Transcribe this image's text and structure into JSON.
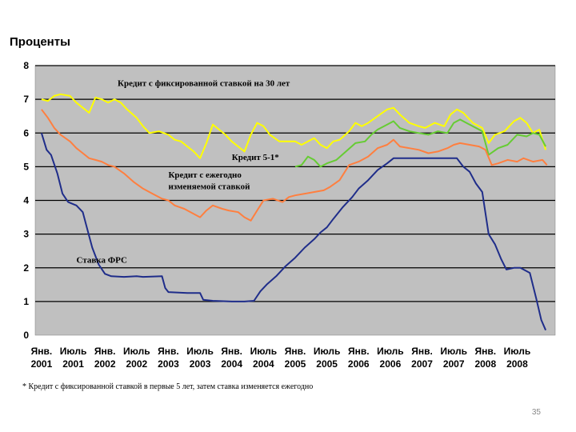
{
  "chart_data": {
    "type": "line",
    "ylabel": "Проценты",
    "ylim": [
      0,
      8
    ],
    "yticks": [
      0,
      1,
      2,
      3,
      4,
      5,
      6,
      7,
      8
    ],
    "xlim": [
      2000.9,
      2009.1
    ],
    "grid": true,
    "xticks": [
      {
        "x": 2001.0,
        "line1": "Янв.",
        "line2": "2001"
      },
      {
        "x": 2001.5,
        "line1": "Июль",
        "line2": "2001"
      },
      {
        "x": 2002.0,
        "line1": "Янв.",
        "line2": "2002"
      },
      {
        "x": 2002.5,
        "line1": "Июль",
        "line2": "2002"
      },
      {
        "x": 2003.0,
        "line1": "Янв.",
        "line2": "2003"
      },
      {
        "x": 2003.5,
        "line1": "Июль",
        "line2": "2003"
      },
      {
        "x": 2004.0,
        "line1": "Янв.",
        "line2": "2004"
      },
      {
        "x": 2004.5,
        "line1": "Июль",
        "line2": "2004"
      },
      {
        "x": 2005.0,
        "line1": "Янв.",
        "line2": "2005"
      },
      {
        "x": 2005.5,
        "line1": "Июль",
        "line2": "2005"
      },
      {
        "x": 2006.0,
        "line1": "Янв.",
        "line2": "2006"
      },
      {
        "x": 2006.5,
        "line1": "Июль",
        "line2": "2006"
      },
      {
        "x": 2007.0,
        "line1": "Янв.",
        "line2": "2007"
      },
      {
        "x": 2007.5,
        "line1": "Июль",
        "line2": "2007"
      },
      {
        "x": 2008.0,
        "line1": "Янв.",
        "line2": "2008"
      },
      {
        "x": 2008.5,
        "line1": "Июль",
        "line2": "2008"
      }
    ],
    "annotations": [
      {
        "id": "ann-30yr",
        "text": "Кредит с фиксированной ставкой на 30 лет",
        "x": 2002.2,
        "y": 7.4
      },
      {
        "id": "ann-51",
        "text": "Кредит 5-1*",
        "x": 2004.0,
        "y": 5.2
      },
      {
        "id": "ann-arm-1",
        "text": "Кредит с ежегодно",
        "x": 2003.0,
        "y": 4.68
      },
      {
        "id": "ann-arm-2",
        "text": "изменяемой ставкой",
        "x": 2003.0,
        "y": 4.33
      },
      {
        "id": "ann-fed",
        "text": "Ставка ФРС",
        "x": 2001.55,
        "y": 2.15
      }
    ],
    "series": [
      {
        "name": "Кредит с фиксированной ставкой на 30 лет",
        "color": "#ffff00",
        "points": [
          [
            2001.0,
            7.0
          ],
          [
            2001.1,
            6.95
          ],
          [
            2001.2,
            7.1
          ],
          [
            2001.3,
            7.15
          ],
          [
            2001.45,
            7.1
          ],
          [
            2001.55,
            6.9
          ],
          [
            2001.65,
            6.75
          ],
          [
            2001.75,
            6.6
          ],
          [
            2001.85,
            7.05
          ],
          [
            2001.95,
            7.0
          ],
          [
            2002.05,
            6.9
          ],
          [
            2002.15,
            7.0
          ],
          [
            2002.25,
            6.9
          ],
          [
            2002.35,
            6.7
          ],
          [
            2002.5,
            6.45
          ],
          [
            2002.6,
            6.2
          ],
          [
            2002.7,
            6.0
          ],
          [
            2002.85,
            6.05
          ],
          [
            2003.0,
            5.95
          ],
          [
            2003.1,
            5.8
          ],
          [
            2003.2,
            5.75
          ],
          [
            2003.3,
            5.6
          ],
          [
            2003.4,
            5.45
          ],
          [
            2003.5,
            5.25
          ],
          [
            2003.6,
            5.7
          ],
          [
            2003.7,
            6.25
          ],
          [
            2003.8,
            6.1
          ],
          [
            2003.9,
            5.95
          ],
          [
            2004.0,
            5.75
          ],
          [
            2004.1,
            5.6
          ],
          [
            2004.2,
            5.45
          ],
          [
            2004.3,
            5.95
          ],
          [
            2004.4,
            6.3
          ],
          [
            2004.5,
            6.2
          ],
          [
            2004.6,
            5.95
          ],
          [
            2004.75,
            5.75
          ],
          [
            2004.9,
            5.75
          ],
          [
            2005.0,
            5.75
          ],
          [
            2005.1,
            5.65
          ],
          [
            2005.2,
            5.75
          ],
          [
            2005.3,
            5.85
          ],
          [
            2005.4,
            5.65
          ],
          [
            2005.5,
            5.55
          ],
          [
            2005.6,
            5.75
          ],
          [
            2005.7,
            5.8
          ],
          [
            2005.85,
            6.05
          ],
          [
            2005.95,
            6.3
          ],
          [
            2006.05,
            6.2
          ],
          [
            2006.15,
            6.3
          ],
          [
            2006.3,
            6.5
          ],
          [
            2006.45,
            6.7
          ],
          [
            2006.55,
            6.75
          ],
          [
            2006.65,
            6.55
          ],
          [
            2006.8,
            6.3
          ],
          [
            2006.95,
            6.2
          ],
          [
            2007.05,
            6.15
          ],
          [
            2007.2,
            6.3
          ],
          [
            2007.35,
            6.2
          ],
          [
            2007.45,
            6.55
          ],
          [
            2007.55,
            6.7
          ],
          [
            2007.65,
            6.6
          ],
          [
            2007.8,
            6.3
          ],
          [
            2007.95,
            6.15
          ],
          [
            2008.05,
            5.7
          ],
          [
            2008.15,
            5.95
          ],
          [
            2008.3,
            6.05
          ],
          [
            2008.45,
            6.35
          ],
          [
            2008.55,
            6.45
          ],
          [
            2008.65,
            6.3
          ],
          [
            2008.75,
            6.0
          ],
          [
            2008.85,
            6.1
          ],
          [
            2008.95,
            5.5
          ]
        ]
      },
      {
        "name": "Кредит 5-1*",
        "color": "#66cc33",
        "points": [
          [
            2005.0,
            5.0
          ],
          [
            2005.1,
            5.05
          ],
          [
            2005.2,
            5.3
          ],
          [
            2005.3,
            5.2
          ],
          [
            2005.4,
            5.0
          ],
          [
            2005.5,
            5.1
          ],
          [
            2005.65,
            5.2
          ],
          [
            2005.8,
            5.45
          ],
          [
            2005.95,
            5.7
          ],
          [
            2006.1,
            5.75
          ],
          [
            2006.2,
            5.95
          ],
          [
            2006.3,
            6.1
          ],
          [
            2006.45,
            6.25
          ],
          [
            2006.55,
            6.35
          ],
          [
            2006.65,
            6.15
          ],
          [
            2006.8,
            6.05
          ],
          [
            2006.95,
            6.0
          ],
          [
            2007.1,
            5.95
          ],
          [
            2007.25,
            6.05
          ],
          [
            2007.4,
            6.0
          ],
          [
            2007.5,
            6.3
          ],
          [
            2007.6,
            6.4
          ],
          [
            2007.7,
            6.3
          ],
          [
            2007.85,
            6.15
          ],
          [
            2007.95,
            6.05
          ],
          [
            2008.05,
            5.35
          ],
          [
            2008.2,
            5.55
          ],
          [
            2008.35,
            5.65
          ],
          [
            2008.5,
            5.95
          ],
          [
            2008.65,
            5.9
          ],
          [
            2008.75,
            6.0
          ],
          [
            2008.85,
            5.95
          ],
          [
            2008.95,
            5.6
          ]
        ]
      },
      {
        "name": "Кредит с ежегодно изменяемой ставкой",
        "color": "#ff7f3f",
        "points": [
          [
            2001.0,
            6.7
          ],
          [
            2001.1,
            6.45
          ],
          [
            2001.2,
            6.15
          ],
          [
            2001.3,
            5.95
          ],
          [
            2001.45,
            5.75
          ],
          [
            2001.55,
            5.55
          ],
          [
            2001.65,
            5.4
          ],
          [
            2001.75,
            5.25
          ],
          [
            2001.85,
            5.2
          ],
          [
            2001.95,
            5.15
          ],
          [
            2002.05,
            5.05
          ],
          [
            2002.15,
            5.0
          ],
          [
            2002.3,
            4.8
          ],
          [
            2002.45,
            4.55
          ],
          [
            2002.6,
            4.35
          ],
          [
            2002.75,
            4.2
          ],
          [
            2002.9,
            4.05
          ],
          [
            2003.0,
            4.0
          ],
          [
            2003.1,
            3.85
          ],
          [
            2003.25,
            3.75
          ],
          [
            2003.4,
            3.6
          ],
          [
            2003.5,
            3.5
          ],
          [
            2003.6,
            3.7
          ],
          [
            2003.7,
            3.85
          ],
          [
            2003.85,
            3.75
          ],
          [
            2003.95,
            3.7
          ],
          [
            2004.1,
            3.65
          ],
          [
            2004.2,
            3.5
          ],
          [
            2004.3,
            3.4
          ],
          [
            2004.4,
            3.7
          ],
          [
            2004.5,
            4.0
          ],
          [
            2004.65,
            4.05
          ],
          [
            2004.8,
            3.95
          ],
          [
            2004.9,
            4.1
          ],
          [
            2005.0,
            4.15
          ],
          [
            2005.15,
            4.2
          ],
          [
            2005.3,
            4.25
          ],
          [
            2005.45,
            4.3
          ],
          [
            2005.55,
            4.4
          ],
          [
            2005.7,
            4.6
          ],
          [
            2005.85,
            5.05
          ],
          [
            2006.0,
            5.15
          ],
          [
            2006.15,
            5.3
          ],
          [
            2006.3,
            5.55
          ],
          [
            2006.45,
            5.65
          ],
          [
            2006.55,
            5.8
          ],
          [
            2006.65,
            5.6
          ],
          [
            2006.8,
            5.55
          ],
          [
            2006.95,
            5.5
          ],
          [
            2007.1,
            5.4
          ],
          [
            2007.25,
            5.45
          ],
          [
            2007.4,
            5.55
          ],
          [
            2007.5,
            5.65
          ],
          [
            2007.6,
            5.7
          ],
          [
            2007.75,
            5.65
          ],
          [
            2007.9,
            5.6
          ],
          [
            2008.0,
            5.5
          ],
          [
            2008.1,
            5.05
          ],
          [
            2008.2,
            5.1
          ],
          [
            2008.35,
            5.2
          ],
          [
            2008.5,
            5.15
          ],
          [
            2008.6,
            5.25
          ],
          [
            2008.75,
            5.15
          ],
          [
            2008.9,
            5.2
          ],
          [
            2008.97,
            5.05
          ]
        ]
      },
      {
        "name": "Ставка ФРС",
        "color": "#1f2d8a",
        "points": [
          [
            2001.0,
            6.0
          ],
          [
            2001.08,
            5.5
          ],
          [
            2001.15,
            5.35
          ],
          [
            2001.25,
            4.8
          ],
          [
            2001.33,
            4.2
          ],
          [
            2001.42,
            3.95
          ],
          [
            2001.55,
            3.85
          ],
          [
            2001.65,
            3.65
          ],
          [
            2001.7,
            3.3
          ],
          [
            2001.8,
            2.6
          ],
          [
            2001.9,
            2.1
          ],
          [
            2002.0,
            1.82
          ],
          [
            2002.1,
            1.75
          ],
          [
            2002.3,
            1.73
          ],
          [
            2002.5,
            1.75
          ],
          [
            2002.6,
            1.73
          ],
          [
            2002.9,
            1.75
          ],
          [
            2002.95,
            1.4
          ],
          [
            2003.0,
            1.28
          ],
          [
            2003.3,
            1.25
          ],
          [
            2003.5,
            1.25
          ],
          [
            2003.55,
            1.05
          ],
          [
            2003.7,
            1.02
          ],
          [
            2004.0,
            1.0
          ],
          [
            2004.2,
            1.0
          ],
          [
            2004.35,
            1.02
          ],
          [
            2004.45,
            1.3
          ],
          [
            2004.55,
            1.5
          ],
          [
            2004.7,
            1.75
          ],
          [
            2004.85,
            2.05
          ],
          [
            2005.0,
            2.3
          ],
          [
            2005.15,
            2.6
          ],
          [
            2005.3,
            2.85
          ],
          [
            2005.4,
            3.05
          ],
          [
            2005.5,
            3.2
          ],
          [
            2005.6,
            3.45
          ],
          [
            2005.75,
            3.8
          ],
          [
            2005.9,
            4.1
          ],
          [
            2006.0,
            4.35
          ],
          [
            2006.15,
            4.6
          ],
          [
            2006.3,
            4.9
          ],
          [
            2006.45,
            5.1
          ],
          [
            2006.55,
            5.25
          ],
          [
            2006.8,
            5.25
          ],
          [
            2007.0,
            5.25
          ],
          [
            2007.3,
            5.25
          ],
          [
            2007.55,
            5.25
          ],
          [
            2007.65,
            5.0
          ],
          [
            2007.75,
            4.85
          ],
          [
            2007.85,
            4.5
          ],
          [
            2007.95,
            4.25
          ],
          [
            2008.05,
            3.0
          ],
          [
            2008.15,
            2.7
          ],
          [
            2008.25,
            2.25
          ],
          [
            2008.33,
            1.95
          ],
          [
            2008.45,
            2.0
          ],
          [
            2008.55,
            2.0
          ],
          [
            2008.7,
            1.85
          ],
          [
            2008.8,
            1.1
          ],
          [
            2008.88,
            0.45
          ],
          [
            2008.95,
            0.15
          ]
        ]
      }
    ]
  },
  "footnote": "* Кредит с фиксированной ставкой в первые 5 лет, затем ставка изменяется ежегодно",
  "page_number": "35"
}
